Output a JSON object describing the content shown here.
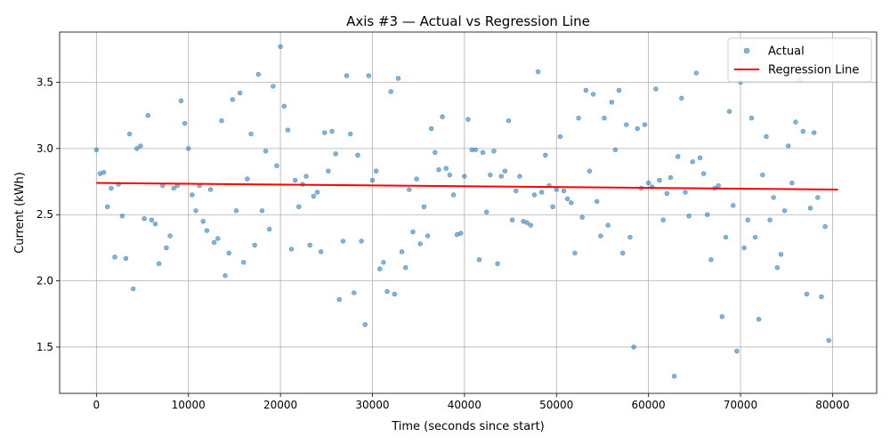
{
  "chart_data": {
    "type": "scatter",
    "title": "Axis #3 — Actual vs Regression Line",
    "xlabel": "Time (seconds since start)",
    "ylabel": "Current (kWh)",
    "xlim": [
      -4000,
      84800
    ],
    "ylim": [
      1.15,
      3.88
    ],
    "xticks": [
      0,
      10000,
      20000,
      30000,
      40000,
      50000,
      60000,
      70000,
      80000
    ],
    "yticks": [
      1.5,
      2.0,
      2.5,
      3.0,
      3.5
    ],
    "xtick_labels": [
      "0",
      "10000",
      "20000",
      "30000",
      "40000",
      "50000",
      "60000",
      "70000",
      "80000"
    ],
    "ytick_labels": [
      "1.5",
      "2.0",
      "2.5",
      "3.0",
      "3.5"
    ],
    "grid": true,
    "legend_position": "top-right",
    "series": [
      {
        "name": "Actual",
        "kind": "scatter",
        "color": "#1f77b4",
        "points": [
          [
            0,
            2.99
          ],
          [
            400,
            2.81
          ],
          [
            800,
            2.82
          ],
          [
            1200,
            2.56
          ],
          [
            1600,
            2.7
          ],
          [
            2000,
            2.18
          ],
          [
            2400,
            2.73
          ],
          [
            2800,
            2.49
          ],
          [
            3200,
            2.17
          ],
          [
            3600,
            3.11
          ],
          [
            4000,
            1.94
          ],
          [
            4400,
            3.0
          ],
          [
            4800,
            3.02
          ],
          [
            5200,
            2.47
          ],
          [
            5600,
            3.25
          ],
          [
            6000,
            2.46
          ],
          [
            6400,
            2.43
          ],
          [
            6800,
            2.13
          ],
          [
            7200,
            2.72
          ],
          [
            7600,
            2.25
          ],
          [
            8000,
            2.34
          ],
          [
            8400,
            2.7
          ],
          [
            8800,
            2.72
          ],
          [
            9200,
            3.36
          ],
          [
            9600,
            3.19
          ],
          [
            10000,
            3.0
          ],
          [
            10400,
            2.65
          ],
          [
            10800,
            2.53
          ],
          [
            11200,
            2.72
          ],
          [
            11600,
            2.45
          ],
          [
            12000,
            2.38
          ],
          [
            12400,
            2.69
          ],
          [
            12800,
            2.29
          ],
          [
            13200,
            2.32
          ],
          [
            13600,
            3.21
          ],
          [
            14000,
            2.04
          ],
          [
            14400,
            2.21
          ],
          [
            14800,
            3.37
          ],
          [
            15200,
            2.53
          ],
          [
            15600,
            3.42
          ],
          [
            16000,
            2.14
          ],
          [
            16400,
            2.77
          ],
          [
            16800,
            3.11
          ],
          [
            17200,
            2.27
          ],
          [
            17600,
            3.56
          ],
          [
            18000,
            2.53
          ],
          [
            18400,
            2.98
          ],
          [
            18800,
            2.39
          ],
          [
            19200,
            3.47
          ],
          [
            19600,
            2.87
          ],
          [
            20000,
            3.77
          ],
          [
            20400,
            3.32
          ],
          [
            20800,
            3.14
          ],
          [
            21200,
            2.24
          ],
          [
            21600,
            2.76
          ],
          [
            22000,
            2.56
          ],
          [
            22400,
            2.73
          ],
          [
            22800,
            2.79
          ],
          [
            23200,
            2.27
          ],
          [
            23600,
            2.64
          ],
          [
            24000,
            2.67
          ],
          [
            24400,
            2.22
          ],
          [
            24800,
            3.12
          ],
          [
            25200,
            2.83
          ],
          [
            25600,
            3.13
          ],
          [
            26000,
            2.96
          ],
          [
            26400,
            1.86
          ],
          [
            26800,
            2.3
          ],
          [
            27200,
            3.55
          ],
          [
            27600,
            3.11
          ],
          [
            28000,
            1.91
          ],
          [
            28400,
            2.95
          ],
          [
            28800,
            2.3
          ],
          [
            29200,
            1.67
          ],
          [
            29600,
            3.55
          ],
          [
            30000,
            2.76
          ],
          [
            30400,
            2.83
          ],
          [
            30800,
            2.09
          ],
          [
            31200,
            2.14
          ],
          [
            31600,
            1.92
          ],
          [
            32000,
            3.43
          ],
          [
            32400,
            1.9
          ],
          [
            32800,
            3.53
          ],
          [
            33200,
            2.22
          ],
          [
            33600,
            2.1
          ],
          [
            34000,
            2.69
          ],
          [
            34400,
            2.37
          ],
          [
            34800,
            2.77
          ],
          [
            35200,
            2.28
          ],
          [
            35600,
            2.56
          ],
          [
            36000,
            2.34
          ],
          [
            36400,
            3.15
          ],
          [
            36800,
            2.97
          ],
          [
            37200,
            2.84
          ],
          [
            37600,
            3.24
          ],
          [
            38000,
            2.85
          ],
          [
            38400,
            2.8
          ],
          [
            38800,
            2.65
          ],
          [
            39200,
            2.35
          ],
          [
            39600,
            2.36
          ],
          [
            40000,
            2.79
          ],
          [
            40400,
            3.22
          ],
          [
            40800,
            2.99
          ],
          [
            41200,
            2.99
          ],
          [
            41600,
            2.16
          ],
          [
            42000,
            2.97
          ],
          [
            42400,
            2.52
          ],
          [
            42800,
            2.8
          ],
          [
            43200,
            2.98
          ],
          [
            43600,
            2.13
          ],
          [
            44000,
            2.79
          ],
          [
            44400,
            2.83
          ],
          [
            44800,
            3.21
          ],
          [
            45200,
            2.46
          ],
          [
            45600,
            2.68
          ],
          [
            46000,
            2.79
          ],
          [
            46400,
            2.45
          ],
          [
            46800,
            2.44
          ],
          [
            47200,
            2.42
          ],
          [
            47600,
            2.65
          ],
          [
            48000,
            3.58
          ],
          [
            48400,
            2.67
          ],
          [
            48800,
            2.95
          ],
          [
            49200,
            2.72
          ],
          [
            49600,
            2.56
          ],
          [
            50000,
            2.69
          ],
          [
            50400,
            3.09
          ],
          [
            50800,
            2.68
          ],
          [
            51200,
            2.62
          ],
          [
            51600,
            2.59
          ],
          [
            52000,
            2.21
          ],
          [
            52400,
            3.23
          ],
          [
            52800,
            2.48
          ],
          [
            53200,
            3.44
          ],
          [
            53600,
            2.83
          ],
          [
            54000,
            3.41
          ],
          [
            54400,
            2.6
          ],
          [
            54800,
            2.34
          ],
          [
            55200,
            3.23
          ],
          [
            55600,
            2.42
          ],
          [
            56000,
            3.35
          ],
          [
            56400,
            2.99
          ],
          [
            56800,
            3.44
          ],
          [
            57200,
            2.21
          ],
          [
            57600,
            3.18
          ],
          [
            58000,
            2.33
          ],
          [
            58400,
            1.5
          ],
          [
            58800,
            3.15
          ],
          [
            59200,
            2.7
          ],
          [
            59600,
            3.18
          ],
          [
            60000,
            2.74
          ],
          [
            60400,
            2.71
          ],
          [
            60800,
            3.45
          ],
          [
            61200,
            2.76
          ],
          [
            61600,
            2.46
          ],
          [
            62000,
            2.66
          ],
          [
            62400,
            2.78
          ],
          [
            62800,
            1.28
          ],
          [
            63200,
            2.94
          ],
          [
            63600,
            3.38
          ],
          [
            64000,
            2.67
          ],
          [
            64400,
            2.49
          ],
          [
            64800,
            2.9
          ],
          [
            65200,
            3.57
          ],
          [
            65600,
            2.93
          ],
          [
            66000,
            2.81
          ],
          [
            66400,
            2.5
          ],
          [
            66800,
            2.16
          ],
          [
            67200,
            2.7
          ],
          [
            67600,
            2.72
          ],
          [
            68000,
            1.73
          ],
          [
            68400,
            2.33
          ],
          [
            68800,
            3.28
          ],
          [
            69200,
            2.57
          ],
          [
            69600,
            1.47
          ],
          [
            70000,
            3.5
          ],
          [
            70400,
            2.25
          ],
          [
            70800,
            2.46
          ],
          [
            71200,
            3.23
          ],
          [
            71600,
            2.33
          ],
          [
            72000,
            1.71
          ],
          [
            72400,
            2.8
          ],
          [
            72800,
            3.09
          ],
          [
            73200,
            2.46
          ],
          [
            73600,
            2.63
          ],
          [
            74000,
            2.1
          ],
          [
            74400,
            2.2
          ],
          [
            74800,
            2.53
          ],
          [
            75200,
            3.02
          ],
          [
            75600,
            2.74
          ],
          [
            76000,
            3.2
          ],
          [
            76400,
            3.52
          ],
          [
            76800,
            3.13
          ],
          [
            77200,
            1.9
          ],
          [
            77600,
            2.55
          ],
          [
            78000,
            3.12
          ],
          [
            78400,
            2.63
          ],
          [
            78800,
            1.88
          ],
          [
            79200,
            2.41
          ],
          [
            79600,
            1.55
          ]
        ]
      },
      {
        "name": "Regression Line",
        "kind": "line",
        "color": "#ff0000",
        "x": [
          0,
          80600
        ],
        "y": [
          2.74,
          2.69
        ]
      }
    ]
  }
}
